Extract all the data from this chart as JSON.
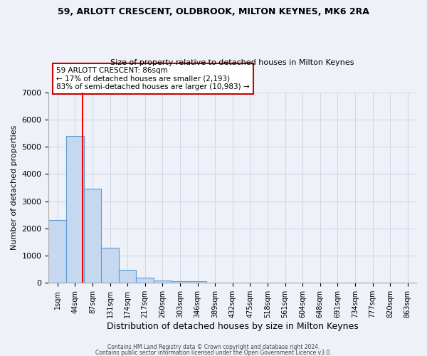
{
  "title1": "59, ARLOTT CRESCENT, OLDBROOK, MILTON KEYNES, MK6 2RA",
  "title2": "Size of property relative to detached houses in Milton Keynes",
  "xlabel": "Distribution of detached houses by size in Milton Keynes",
  "ylabel": "Number of detached properties",
  "bar_values": [
    2300,
    5400,
    3450,
    1300,
    490,
    190,
    80,
    60,
    55,
    0,
    0,
    0,
    0,
    0,
    0,
    0,
    0,
    0,
    0,
    0,
    0
  ],
  "x_labels": [
    "1sqm",
    "44sqm",
    "87sqm",
    "131sqm",
    "174sqm",
    "217sqm",
    "260sqm",
    "303sqm",
    "346sqm",
    "389sqm",
    "432sqm",
    "475sqm",
    "518sqm",
    "561sqm",
    "604sqm",
    "648sqm",
    "691sqm",
    "734sqm",
    "777sqm",
    "820sqm",
    "863sqm"
  ],
  "bar_color": "#c5d8f0",
  "bar_edge_color": "#5b9bd5",
  "grid_color": "#d0d8e8",
  "background_color": "#eef2f8",
  "red_line_x": 1.45,
  "annotation_text": "59 ARLOTT CRESCENT: 86sqm\n← 17% of detached houses are smaller (2,193)\n83% of semi-detached houses are larger (10,983) →",
  "annotation_box_color": "#ffffff",
  "annotation_border_color": "#cc0000",
  "ylim": [
    0,
    7000
  ],
  "yticks": [
    0,
    1000,
    2000,
    3000,
    4000,
    5000,
    6000,
    7000
  ],
  "footer1": "Contains HM Land Registry data © Crown copyright and database right 2024.",
  "footer2": "Contains public sector information licensed under the Open Government Licence v3.0."
}
